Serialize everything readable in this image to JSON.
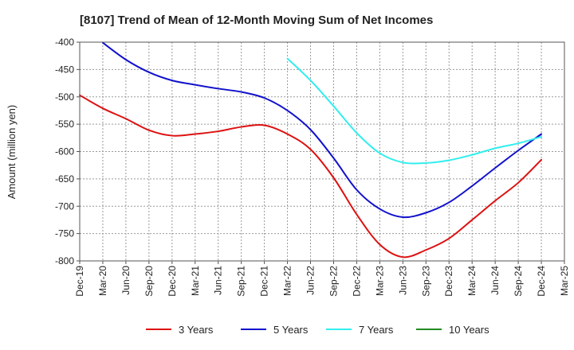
{
  "chart_data": {
    "type": "line",
    "title": "[8107]  Trend of Mean of 12-Month Moving Sum of Net Incomes",
    "xlabel": "",
    "ylabel": "Amount (million yen)",
    "ylim": [
      -800,
      -400
    ],
    "yticks": [
      "-400",
      "-450",
      "-500",
      "-550",
      "-600",
      "-650",
      "-700",
      "-750",
      "-800"
    ],
    "ytick_values": [
      -400,
      -450,
      -500,
      -550,
      -600,
      -650,
      -700,
      -750,
      -800
    ],
    "categories": [
      "Dec-19",
      "Mar-20",
      "Jun-20",
      "Sep-20",
      "Dec-20",
      "Mar-21",
      "Jun-21",
      "Sep-21",
      "Dec-21",
      "Mar-22",
      "Jun-22",
      "Sep-22",
      "Dec-22",
      "Mar-23",
      "Jun-23",
      "Sep-23",
      "Dec-23",
      "Mar-24",
      "Jun-24",
      "Sep-24",
      "Dec-24",
      "Mar-25"
    ],
    "grid": true,
    "legend_position": "bottom",
    "series": [
      {
        "name": "3 Years",
        "color": "#dd1111",
        "values": [
          -497,
          -521,
          -540,
          -561,
          -571,
          -568,
          -563,
          -555,
          -552,
          -568,
          -596,
          -648,
          -715,
          -770,
          -793,
          -780,
          -759,
          -725,
          -690,
          -657,
          -615,
          null
        ]
      },
      {
        "name": "5 Years",
        "color": "#1111cc",
        "values": [
          null,
          -401,
          -432,
          -455,
          -470,
          -478,
          -485,
          -491,
          -502,
          -525,
          -560,
          -612,
          -670,
          -705,
          -720,
          -712,
          -693,
          -663,
          -630,
          -598,
          -568,
          null
        ]
      },
      {
        "name": "7 Years",
        "color": "#33eeee",
        "values": [
          null,
          null,
          null,
          null,
          null,
          null,
          null,
          null,
          null,
          -430,
          -470,
          -517,
          -566,
          -603,
          -620,
          -621,
          -616,
          -606,
          -594,
          -585,
          -573,
          null
        ]
      },
      {
        "name": "10 Years",
        "color": "#228b22",
        "values": [
          null,
          null,
          null,
          null,
          null,
          null,
          null,
          null,
          null,
          null,
          null,
          null,
          null,
          null,
          null,
          null,
          null,
          null,
          null,
          null,
          null,
          null
        ]
      }
    ]
  }
}
